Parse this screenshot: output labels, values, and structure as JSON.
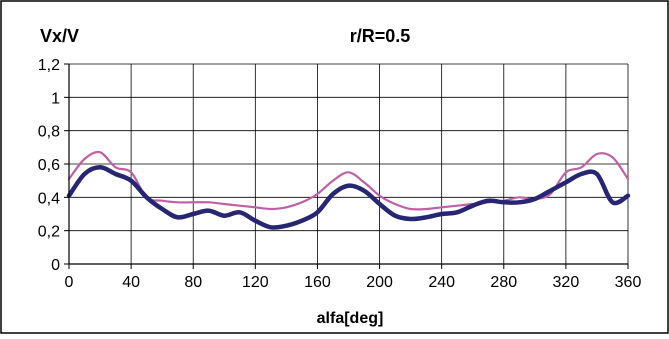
{
  "chart_data": {
    "type": "line",
    "title": "r/R=0.5",
    "xlabel": "alfa[deg]",
    "ylabel": "Vx/V",
    "xlim": [
      0,
      360
    ],
    "ylim": [
      0,
      1.2
    ],
    "x_ticks": [
      "0",
      "40",
      "80",
      "120",
      "160",
      "200",
      "240",
      "280",
      "320",
      "360"
    ],
    "y_ticks": [
      "0",
      "0,2",
      "0,4",
      "0,6",
      "0,8",
      "1",
      "1,2"
    ],
    "grid": true,
    "legend": "none",
    "series": [
      {
        "color": "#262673",
        "points": [
          [
            0,
            0.41
          ],
          [
            10,
            0.54
          ],
          [
            20,
            0.58
          ],
          [
            30,
            0.54
          ],
          [
            40,
            0.5
          ],
          [
            50,
            0.4
          ],
          [
            60,
            0.33
          ],
          [
            70,
            0.28
          ],
          [
            80,
            0.3
          ],
          [
            90,
            0.32
          ],
          [
            100,
            0.29
          ],
          [
            110,
            0.31
          ],
          [
            120,
            0.26
          ],
          [
            130,
            0.22
          ],
          [
            140,
            0.23
          ],
          [
            150,
            0.26
          ],
          [
            160,
            0.31
          ],
          [
            170,
            0.42
          ],
          [
            180,
            0.47
          ],
          [
            190,
            0.44
          ],
          [
            200,
            0.36
          ],
          [
            210,
            0.29
          ],
          [
            220,
            0.27
          ],
          [
            230,
            0.28
          ],
          [
            240,
            0.3
          ],
          [
            250,
            0.31
          ],
          [
            260,
            0.35
          ],
          [
            270,
            0.38
          ],
          [
            280,
            0.37
          ],
          [
            290,
            0.37
          ],
          [
            300,
            0.39
          ],
          [
            310,
            0.44
          ],
          [
            320,
            0.49
          ],
          [
            330,
            0.54
          ],
          [
            340,
            0.54
          ],
          [
            350,
            0.37
          ],
          [
            360,
            0.41
          ]
        ]
      },
      {
        "color": "#c060a8",
        "points": [
          [
            0,
            0.51
          ],
          [
            10,
            0.63
          ],
          [
            20,
            0.67
          ],
          [
            30,
            0.58
          ],
          [
            40,
            0.55
          ],
          [
            50,
            0.4
          ],
          [
            60,
            0.38
          ],
          [
            70,
            0.37
          ],
          [
            80,
            0.37
          ],
          [
            90,
            0.37
          ],
          [
            100,
            0.36
          ],
          [
            110,
            0.35
          ],
          [
            120,
            0.34
          ],
          [
            130,
            0.33
          ],
          [
            140,
            0.34
          ],
          [
            150,
            0.37
          ],
          [
            160,
            0.42
          ],
          [
            170,
            0.5
          ],
          [
            180,
            0.55
          ],
          [
            190,
            0.49
          ],
          [
            200,
            0.41
          ],
          [
            210,
            0.36
          ],
          [
            220,
            0.33
          ],
          [
            230,
            0.33
          ],
          [
            240,
            0.34
          ],
          [
            250,
            0.35
          ],
          [
            260,
            0.36
          ],
          [
            270,
            0.37
          ],
          [
            280,
            0.38
          ],
          [
            290,
            0.4
          ],
          [
            300,
            0.39
          ],
          [
            310,
            0.42
          ],
          [
            320,
            0.55
          ],
          [
            330,
            0.58
          ],
          [
            340,
            0.66
          ],
          [
            350,
            0.64
          ],
          [
            360,
            0.51
          ]
        ]
      }
    ]
  }
}
